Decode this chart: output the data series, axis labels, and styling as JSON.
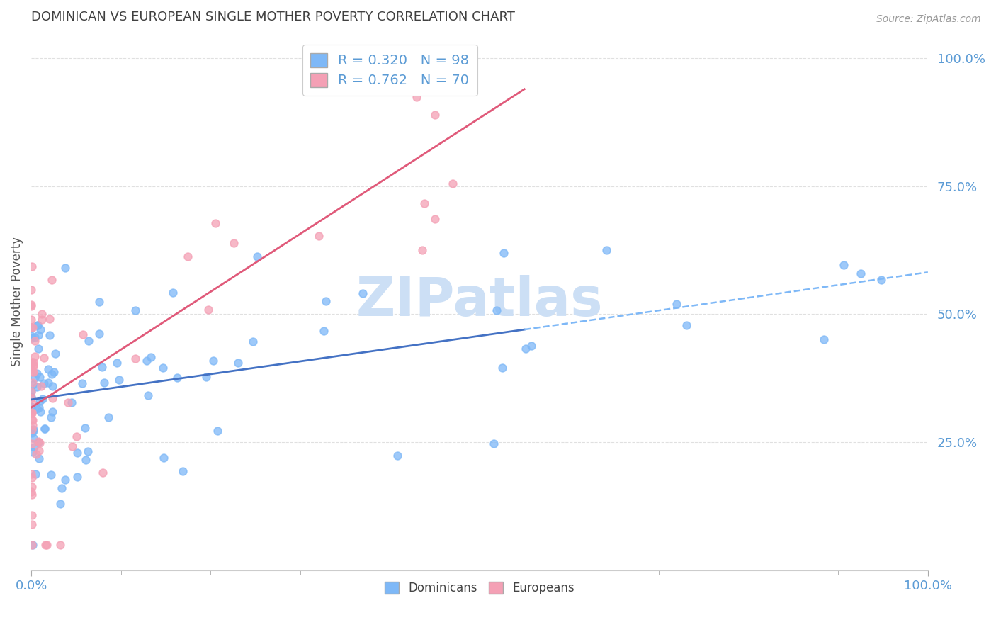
{
  "title": "DOMINICAN VS EUROPEAN SINGLE MOTHER POVERTY CORRELATION CHART",
  "source": "Source: ZipAtlas.com",
  "ylabel": "Single Mother Poverty",
  "dominican_color": "#7eb8f7",
  "european_color": "#f4a0b5",
  "dominican_line_color": "#4472c4",
  "european_line_color": "#e05a7a",
  "dashed_line_color": "#7eb8f7",
  "watermark_color": "#ccdff5",
  "background_color": "#ffffff",
  "grid_color": "#e0e0e0",
  "axis_label_color": "#5b9bd5",
  "title_color": "#404040",
  "ylabel_color": "#555555",
  "legend_label_color": "#5b9bd5",
  "bottom_legend_color": "#444444",
  "dom_R": 0.32,
  "dom_N": 98,
  "eur_R": 0.762,
  "eur_N": 70,
  "xlim": [
    0,
    1.0
  ],
  "ylim": [
    0,
    1.05
  ],
  "ytick_positions": [
    0.25,
    0.5,
    0.75,
    1.0
  ],
  "ytick_labels": [
    "25.0%",
    "50.0%",
    "75.0%",
    "100.0%"
  ],
  "xtick_positions": [
    0.0,
    1.0
  ],
  "xtick_labels": [
    "0.0%",
    "100.0%"
  ],
  "scatter_size": 60,
  "scatter_alpha": 0.75,
  "scatter_linewidth": 1.2,
  "reg_linewidth": 2.0,
  "dashed_linewidth": 1.8
}
